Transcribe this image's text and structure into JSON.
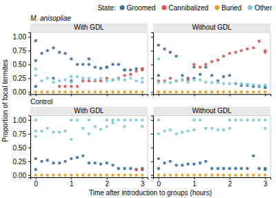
{
  "chart_data": [
    {
      "type": "scatter",
      "title": "With GDL",
      "subtitle": "M. anisopliae",
      "ylabel": "Proportion of focal termites",
      "annotations": [
        {
          "text": "State:"
        }
      ],
      "xlim": [
        -0.15,
        3.15
      ],
      "ylim": [
        -0.04,
        1.08
      ],
      "xticks": [
        0,
        1,
        2,
        3
      ],
      "yticks": [
        {
          "value": 0.0,
          "label": "0.00"
        },
        {
          "value": 0.25,
          "label": "0.25"
        },
        {
          "value": 0.5,
          "label": "0.50"
        },
        {
          "value": 0.75,
          "label": "0.75"
        },
        {
          "value": 1.0,
          "label": "1.00"
        }
      ],
      "grid": false,
      "tick_labels": "y",
      "series": [
        {
          "name": "Groomed",
          "color": "#3a6ea5",
          "x": [
            0.0,
            0.0,
            0.0,
            0.17,
            0.33,
            0.5,
            0.5,
            0.67,
            0.83,
            1.0,
            1.0,
            1.17,
            1.33,
            1.5,
            1.5,
            1.67,
            1.83,
            2.0,
            2.0,
            2.17,
            2.33,
            2.5,
            2.5,
            2.67,
            2.83,
            3.0
          ],
          "values": [
            0.93,
            0.57,
            0.1,
            0.7,
            0.75,
            0.8,
            0.25,
            0.72,
            0.7,
            0.6,
            0.2,
            0.5,
            0.5,
            0.6,
            0.5,
            0.45,
            0.43,
            0.45,
            0.45,
            0.5,
            0.5,
            0.4,
            0.4,
            0.4,
            0.42,
            0.42
          ]
        },
        {
          "name": "Cannibalized",
          "color": "#d9534f",
          "x": [
            0.67,
            0.83,
            1.0,
            1.17,
            1.33,
            1.5,
            1.67,
            1.83,
            2.0,
            2.17,
            2.33,
            2.5,
            2.67,
            2.83,
            3.0,
            3.0
          ],
          "values": [
            0.1,
            0.1,
            0.1,
            0.1,
            0.2,
            0.2,
            0.2,
            0.2,
            0.25,
            0.22,
            0.25,
            0.3,
            0.32,
            0.38,
            0.4,
            0.42
          ]
        },
        {
          "name": "Buried",
          "color": "#e8a020",
          "x": [
            0,
            0.17,
            0.33,
            0.5,
            0.67,
            0.83,
            1.0,
            1.17,
            1.33,
            1.5,
            1.67,
            1.83,
            2.0,
            2.17,
            2.33,
            2.5,
            2.67,
            2.83,
            3.0
          ],
          "values": [
            0.0,
            0.0,
            0.0,
            0.0,
            0.0,
            0.0,
            0.0,
            0.0,
            0.0,
            0.0,
            0.0,
            0.0,
            0.0,
            0.0,
            0.0,
            0.0,
            0.0,
            0.0,
            0.0
          ]
        },
        {
          "name": "Other",
          "color": "#7bc8e0",
          "x": [
            0.0,
            0.0,
            0.17,
            0.33,
            0.5,
            0.67,
            0.83,
            1.0,
            1.0,
            1.17,
            1.33,
            1.5,
            1.67,
            1.83,
            2.0,
            2.17,
            2.33,
            2.5,
            2.67,
            2.83,
            3.0,
            3.0
          ],
          "values": [
            0.42,
            0.3,
            0.2,
            0.25,
            0.18,
            0.2,
            0.22,
            0.28,
            0.18,
            0.28,
            0.25,
            0.25,
            0.22,
            0.25,
            0.2,
            0.22,
            0.23,
            0.22,
            0.25,
            0.2,
            0.25,
            0.18
          ]
        }
      ]
    },
    {
      "type": "scatter",
      "title": "Without GDL",
      "xlim": [
        -0.15,
        3.15
      ],
      "ylim": [
        -0.04,
        1.08
      ],
      "xticks": [
        0,
        1,
        2,
        3
      ],
      "yticks": [
        {
          "value": 0.0,
          "label": "0.00"
        },
        {
          "value": 0.25,
          "label": "0.25"
        },
        {
          "value": 0.5,
          "label": "0.50"
        },
        {
          "value": 0.75,
          "label": "0.75"
        },
        {
          "value": 1.0,
          "label": "1.00"
        }
      ],
      "grid": false,
      "tick_labels": false,
      "series": [
        {
          "name": "Groomed",
          "color": "#3a6ea5",
          "x": [
            0.0,
            0.0,
            0.17,
            0.33,
            0.5,
            0.67,
            0.83,
            1.0,
            1.0,
            1.17,
            1.33,
            1.5,
            1.67,
            1.83,
            2.0,
            2.17,
            2.33,
            2.5,
            2.67,
            2.83,
            3.0,
            3.0
          ],
          "values": [
            0.85,
            0.3,
            0.78,
            0.72,
            0.65,
            0.3,
            0.25,
            0.45,
            0.25,
            0.32,
            0.45,
            0.3,
            0.2,
            0.28,
            0.3,
            0.15,
            0.12,
            0.12,
            0.1,
            0.1,
            0.1,
            0.08
          ]
        },
        {
          "name": "Cannibalized",
          "color": "#d9534f",
          "x": [
            0.0,
            0.17,
            0.33,
            0.5,
            0.67,
            0.83,
            1.0,
            1.17,
            1.33,
            1.5,
            1.67,
            1.83,
            2.0,
            2.17,
            2.33,
            2.5,
            2.67,
            2.83,
            3.0,
            3.0
          ],
          "values": [
            0.2,
            0.2,
            0.25,
            0.2,
            0.22,
            0.22,
            0.5,
            0.45,
            0.5,
            0.55,
            0.58,
            0.65,
            0.7,
            0.72,
            0.75,
            0.78,
            0.8,
            0.92,
            0.75,
            0.72
          ]
        },
        {
          "name": "Buried",
          "color": "#e8a020",
          "x": [
            0,
            0.17,
            0.33,
            0.5,
            0.67,
            0.83,
            1.0,
            1.17,
            1.33,
            1.5,
            1.67,
            1.83,
            2.0,
            2.17,
            2.33,
            2.5,
            2.67,
            2.83,
            3.0
          ],
          "values": [
            0.0,
            0.0,
            0.0,
            0.0,
            0.0,
            0.0,
            0.0,
            0.0,
            0.0,
            0.0,
            0.0,
            0.0,
            0.0,
            0.0,
            0.0,
            0.0,
            0.0,
            0.0,
            0.0
          ]
        },
        {
          "name": "Other",
          "color": "#7bc8e0",
          "x": [
            0.0,
            0.0,
            0.17,
            0.33,
            0.5,
            0.67,
            0.83,
            1.0,
            1.17,
            1.33,
            1.5,
            1.67,
            1.83,
            2.0,
            2.17,
            2.33,
            2.5,
            2.67,
            2.83,
            3.0
          ],
          "values": [
            0.6,
            0.17,
            0.18,
            0.17,
            0.2,
            0.22,
            0.18,
            0.22,
            0.22,
            0.18,
            0.17,
            0.17,
            0.15,
            0.15,
            0.15,
            0.15,
            0.14,
            0.13,
            0.12,
            0.12
          ]
        }
      ]
    },
    {
      "type": "scatter",
      "title": "With GDL",
      "subtitle": "Control",
      "xlabel": "Time after introduction to groups (hours)",
      "xlim": [
        -0.15,
        3.15
      ],
      "ylim": [
        -0.04,
        1.08
      ],
      "xticks": [
        0,
        1,
        2,
        3
      ],
      "yticks": [
        {
          "value": 0.0,
          "label": "0.00"
        },
        {
          "value": 0.25,
          "label": "0.25"
        },
        {
          "value": 0.5,
          "label": "0.50"
        },
        {
          "value": 0.75,
          "label": "0.75"
        },
        {
          "value": 1.0,
          "label": "1.00"
        }
      ],
      "grid": false,
      "tick_labels": true,
      "series": [
        {
          "name": "Groomed",
          "color": "#3a6ea5",
          "x": [
            0.0,
            0.0,
            0.17,
            0.33,
            0.5,
            0.67,
            0.83,
            1.0,
            1.17,
            1.33,
            1.5,
            1.67,
            1.83,
            2.0,
            2.17,
            2.33,
            2.5,
            2.67,
            2.83,
            3.0,
            3.0
          ],
          "values": [
            0.3,
            0.1,
            0.25,
            0.27,
            0.22,
            0.22,
            0.25,
            0.3,
            0.32,
            0.35,
            0.22,
            0.22,
            0.2,
            0.22,
            0.18,
            0.12,
            0.12,
            0.12,
            0.1,
            0.12,
            0.1
          ]
        },
        {
          "name": "Cannibalized",
          "color": "#d9534f",
          "x": [
            2.83,
            3.0
          ],
          "values": [
            0.1,
            0.1
          ]
        },
        {
          "name": "Buried",
          "color": "#e8a020",
          "x": [
            0,
            0.17,
            0.33,
            0.5,
            0.67,
            0.83,
            1.0,
            1.17,
            1.33,
            1.5,
            1.67,
            1.83,
            2.0,
            2.17,
            2.33,
            2.5,
            2.67,
            2.83,
            3.0
          ],
          "values": [
            0.0,
            0.0,
            0.0,
            0.0,
            0.0,
            0.0,
            0.0,
            0.0,
            0.0,
            0.0,
            0.0,
            0.0,
            0.0,
            0.0,
            0.0,
            0.0,
            0.0,
            0.0,
            0.0
          ]
        },
        {
          "name": "Other",
          "color": "#7bc8e0",
          "x": [
            0.0,
            0.0,
            0.0,
            0.17,
            0.33,
            0.5,
            0.67,
            0.83,
            1.0,
            1.0,
            1.17,
            1.33,
            1.5,
            1.5,
            1.67,
            1.83,
            2.0,
            2.0,
            2.17,
            2.17,
            2.33,
            2.5,
            2.5,
            2.67,
            2.83,
            3.0,
            3.0
          ],
          "values": [
            1.0,
            0.8,
            0.7,
            0.8,
            0.85,
            0.78,
            0.78,
            0.8,
            1.0,
            0.65,
            1.0,
            0.85,
            1.0,
            0.75,
            0.88,
            0.83,
            1.0,
            0.88,
            1.0,
            0.95,
            1.0,
            1.0,
            0.88,
            1.0,
            1.0,
            1.0,
            0.88
          ]
        }
      ]
    },
    {
      "type": "scatter",
      "title": "Without GDL",
      "xlim": [
        -0.15,
        3.15
      ],
      "ylim": [
        -0.04,
        1.08
      ],
      "xticks": [
        0,
        1,
        2,
        3
      ],
      "yticks": [
        {
          "value": 0.0,
          "label": "0.00"
        },
        {
          "value": 0.25,
          "label": "0.25"
        },
        {
          "value": 0.5,
          "label": "0.50"
        },
        {
          "value": 0.75,
          "label": "0.75"
        },
        {
          "value": 1.0,
          "label": "1.00"
        }
      ],
      "grid": false,
      "tick_labels": "x",
      "series": [
        {
          "name": "Groomed",
          "color": "#3a6ea5",
          "x": [
            0.0,
            0.0,
            0.17,
            0.33,
            0.5,
            0.67,
            0.83,
            1.0,
            1.17,
            1.33,
            1.5,
            1.67,
            1.83,
            2.0,
            2.17,
            2.33,
            2.5,
            2.67,
            2.83,
            3.0,
            3.0
          ],
          "values": [
            0.3,
            0.12,
            0.22,
            0.25,
            0.18,
            0.18,
            0.2,
            0.2,
            0.22,
            0.25,
            0.12,
            0.12,
            0.12,
            0.12,
            0.12,
            0.12,
            0.12,
            0.35,
            0.12,
            0.12,
            0.1
          ]
        },
        {
          "name": "Cannibalized",
          "color": "#d9534f",
          "x": [],
          "values": []
        },
        {
          "name": "Buried",
          "color": "#e8a020",
          "x": [
            0,
            0.17,
            0.33,
            0.5,
            0.67,
            0.83,
            1.0,
            1.17,
            1.33,
            1.5,
            1.67,
            1.83,
            2.0,
            2.17,
            2.33,
            2.5,
            2.67,
            2.83,
            3.0
          ],
          "values": [
            0.0,
            0.0,
            0.0,
            0.0,
            0.0,
            0.0,
            0.0,
            0.0,
            0.0,
            0.0,
            0.0,
            0.0,
            0.0,
            0.0,
            0.0,
            0.0,
            0.0,
            0.0,
            0.0
          ]
        },
        {
          "name": "Other",
          "color": "#7bc8e0",
          "x": [
            0.0,
            0.0,
            0.17,
            0.33,
            0.5,
            0.67,
            0.83,
            1.0,
            1.0,
            1.17,
            1.33,
            1.5,
            1.67,
            1.83,
            2.0,
            2.0,
            2.17,
            2.33,
            2.5,
            2.67,
            2.83,
            3.0,
            3.0
          ],
          "values": [
            1.0,
            0.75,
            0.8,
            0.82,
            0.75,
            0.78,
            0.8,
            1.0,
            0.82,
            1.0,
            0.85,
            0.85,
            0.82,
            0.82,
            1.0,
            0.85,
            1.0,
            1.0,
            1.0,
            1.0,
            1.0,
            1.0,
            0.85
          ]
        }
      ]
    }
  ]
}
